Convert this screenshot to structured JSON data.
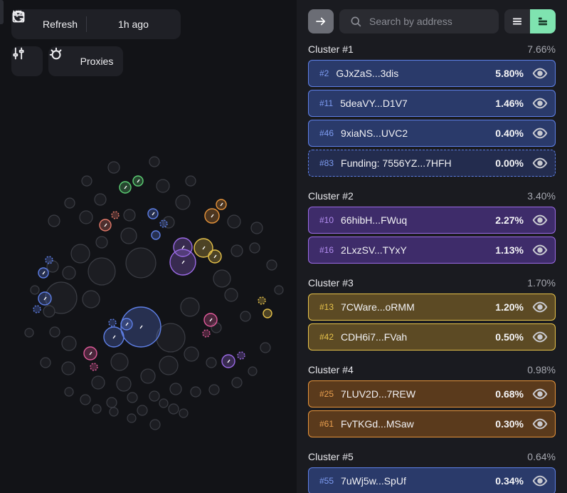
{
  "toolbar": {
    "refresh_label": "Refresh",
    "time_label": "1h ago",
    "proxies_label": "Proxies"
  },
  "search": {
    "placeholder": "Search by address"
  },
  "clusters": [
    {
      "name": "Cluster #1",
      "percent": "7.66%",
      "color": "blue",
      "rows": [
        {
          "index": "#2",
          "address": "GJxZaS...3dis",
          "percent": "5.80%",
          "style": "solid"
        },
        {
          "index": "#11",
          "address": "5deaVY...D1V7",
          "percent": "1.46%",
          "style": "solid"
        },
        {
          "index": "#46",
          "address": "9xiaNS...UVC2",
          "percent": "0.40%",
          "style": "solid"
        },
        {
          "index": "#83",
          "address": "Funding: 7556YZ...7HFH",
          "percent": "0.00%",
          "style": "dashed"
        }
      ]
    },
    {
      "name": "Cluster #2",
      "percent": "3.40%",
      "color": "purple",
      "rows": [
        {
          "index": "#10",
          "address": "66hibH...FWuq",
          "percent": "2.27%",
          "style": "solid"
        },
        {
          "index": "#16",
          "address": "2LxzSV...TYxY",
          "percent": "1.13%",
          "style": "solid"
        }
      ]
    },
    {
      "name": "Cluster #3",
      "percent": "1.70%",
      "color": "yellow",
      "rows": [
        {
          "index": "#13",
          "address": "7CWare...oRMM",
          "percent": "1.20%",
          "style": "solid"
        },
        {
          "index": "#42",
          "address": "CDH6i7...FVah",
          "percent": "0.50%",
          "style": "solid"
        }
      ]
    },
    {
      "name": "Cluster #4",
      "percent": "0.98%",
      "color": "orange",
      "rows": [
        {
          "index": "#25",
          "address": "7LUV2D...7REW",
          "percent": "0.68%",
          "style": "solid"
        },
        {
          "index": "#61",
          "address": "FvTKGd...MSaw",
          "percent": "0.30%",
          "style": "solid"
        }
      ]
    },
    {
      "name": "Cluster #5",
      "percent": "0.64%",
      "color": "blue",
      "rows": [
        {
          "index": "#55",
          "address": "7uWj5w...SpUf",
          "percent": "0.34%",
          "style": "solid"
        }
      ]
    }
  ],
  "colors": {
    "blue": "#5e7fe6",
    "purple": "#9b6ae6",
    "yellow": "#e6c24a",
    "orange": "#e6933a",
    "green": "#5ccf74",
    "pink": "#e05a9a",
    "salmon": "#e57a6a",
    "accent_toggle": "#7fe3b0"
  },
  "icons": {
    "refresh": "refresh-icon",
    "calendar": "calendar-icon",
    "chevron": "chevron-down-icon",
    "filters": "sliders-icon",
    "proxies": "proxies-icon",
    "collapse": "arrow-right-icon",
    "search": "search-icon",
    "list": "list-icon",
    "panel": "panel-icon",
    "eye": "eye-icon"
  }
}
